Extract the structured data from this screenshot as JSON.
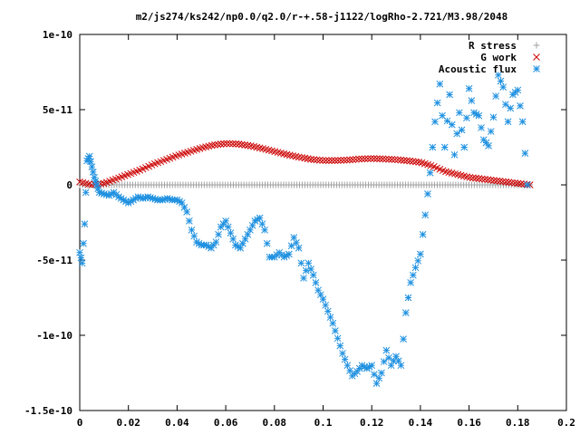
{
  "chart_data": {
    "type": "scatter",
    "title": "m2/js274/ks242/np0.0/q2.0/r-+.58-j1122/logRho-2.721/M3.98/2048",
    "xlabel": "",
    "ylabel": "",
    "xlim": [
      0,
      0.2
    ],
    "ylim": [
      -1.5e-10,
      1e-10
    ],
    "grid": false,
    "legend_position": "top-right",
    "x_ticks": [
      "0",
      "0.02",
      "0.04",
      "0.06",
      "0.08",
      "0.1",
      "0.12",
      "0.14",
      "0.16",
      "0.18",
      "0.2"
    ],
    "x_tick_values": [
      0,
      0.02,
      0.04,
      0.06,
      0.08,
      0.1,
      0.12,
      0.14,
      0.16,
      0.18,
      0.2
    ],
    "y_ticks": [
      "1e-10",
      "5e-11",
      "0",
      "-5e-11",
      "-1e-10",
      "-1.5e-10"
    ],
    "y_tick_values": [
      1e-10,
      5e-11,
      0,
      -5e-11,
      -1e-10,
      -1.5e-10
    ],
    "series": [
      {
        "name": "R stress",
        "color": "#a0a0a0",
        "marker": "plus",
        "x_range": [
          0,
          0.185
        ],
        "value": 0
      },
      {
        "name": "G work",
        "color": "#cc0000",
        "marker": "cross",
        "x": [
          0,
          0.005,
          0.01,
          0.015,
          0.02,
          0.025,
          0.03,
          0.035,
          0.04,
          0.045,
          0.05,
          0.055,
          0.06,
          0.065,
          0.07,
          0.075,
          0.08,
          0.085,
          0.09,
          0.095,
          0.1,
          0.105,
          0.11,
          0.115,
          0.12,
          0.125,
          0.13,
          0.135,
          0.14,
          0.145,
          0.15,
          0.155,
          0.16,
          0.165,
          0.17,
          0.175,
          0.18,
          0.185
        ],
        "y": [
          2e-12,
          0,
          1e-12,
          4e-12,
          7e-12,
          1e-11,
          1.35e-11,
          1.65e-11,
          1.95e-11,
          2.2e-11,
          2.45e-11,
          2.65e-11,
          2.75e-11,
          2.72e-11,
          2.6e-11,
          2.42e-11,
          2.22e-11,
          2.02e-11,
          1.85e-11,
          1.7e-11,
          1.62e-11,
          1.62e-11,
          1.65e-11,
          1.72e-11,
          1.75e-11,
          1.72e-11,
          1.68e-11,
          1.6e-11,
          1.5e-11,
          1.25e-11,
          9e-12,
          7e-12,
          5e-12,
          4e-12,
          3e-12,
          2e-12,
          1e-12,
          0
        ]
      },
      {
        "name": "Acoustic flux",
        "color": "#1e90e0",
        "marker": "star",
        "x": [
          0,
          0.001,
          0.002,
          0.003,
          0.004,
          0.005,
          0.006,
          0.007,
          0.008,
          0.01,
          0.012,
          0.014,
          0.016,
          0.018,
          0.02,
          0.022,
          0.024,
          0.026,
          0.028,
          0.03,
          0.032,
          0.034,
          0.036,
          0.038,
          0.04,
          0.042,
          0.044,
          0.046,
          0.048,
          0.05,
          0.052,
          0.054,
          0.056,
          0.058,
          0.06,
          0.062,
          0.064,
          0.066,
          0.068,
          0.07,
          0.072,
          0.074,
          0.076,
          0.078,
          0.08,
          0.082,
          0.084,
          0.086,
          0.088,
          0.09,
          0.092,
          0.094,
          0.096,
          0.098,
          0.1,
          0.102,
          0.104,
          0.106,
          0.108,
          0.11,
          0.112,
          0.114,
          0.116,
          0.118,
          0.12,
          0.122,
          0.124,
          0.126,
          0.128,
          0.13,
          0.132,
          0.134,
          0.136,
          0.138,
          0.14,
          0.142,
          0.144,
          0.146,
          0.148,
          0.15,
          0.152,
          0.154,
          0.156,
          0.158,
          0.16,
          0.162,
          0.164,
          0.166,
          0.168,
          0.17,
          0.172,
          0.174,
          0.176,
          0.178,
          0.18,
          0.182,
          0.184
        ],
        "y": [
          -4.5e-11,
          -5.2e-11,
          -2.6e-11,
          1.6e-11,
          1.9e-11,
          1.2e-11,
          5e-12,
          0,
          -5e-12,
          -6e-12,
          -7e-12,
          -5e-12,
          -8e-12,
          -1e-11,
          -1.2e-11,
          -1e-11,
          -8e-12,
          -9e-12,
          -8e-12,
          -9e-12,
          -1e-11,
          -1e-11,
          -9e-12,
          -1e-11,
          -1e-11,
          -1.2e-11,
          -1.8e-11,
          -3e-11,
          -3.8e-11,
          -4e-11,
          -4e-11,
          -4.2e-11,
          -3.8e-11,
          -2.8e-11,
          -2.4e-11,
          -3.2e-11,
          -4e-11,
          -4.2e-11,
          -3.6e-11,
          -3e-11,
          -2.4e-11,
          -2.2e-11,
          -3e-11,
          -4.8e-11,
          -4.8e-11,
          -4.5e-11,
          -4.8e-11,
          -4.6e-11,
          -3.5e-11,
          -4.2e-11,
          -6.2e-11,
          -5.2e-11,
          -6e-11,
          -7e-11,
          -7.6e-11,
          -8.4e-11,
          -9.2e-11,
          -1.02e-10,
          -1.12e-10,
          -1.2e-10,
          -1.27e-10,
          -1.24e-10,
          -1.2e-10,
          -1.22e-10,
          -1.2e-10,
          -1.32e-10,
          -1.25e-10,
          -1.1e-10,
          -1.2e-10,
          -1.14e-10,
          -1.2e-10,
          -8.5e-11,
          -6.5e-11,
          -5.5e-11,
          -4.6e-11,
          -2e-11,
          8e-12,
          4.2e-11,
          6.7e-11,
          2.5e-11,
          6e-11,
          2e-11,
          4.8e-11,
          2.5e-11,
          6.4e-11,
          4.8e-11,
          4.6e-11,
          3e-11,
          2.6e-11,
          4.5e-11,
          7.3e-11,
          6.5e-11,
          4.2e-11,
          6e-11,
          6.3e-11,
          4.2e-11,
          0
        ]
      }
    ]
  }
}
